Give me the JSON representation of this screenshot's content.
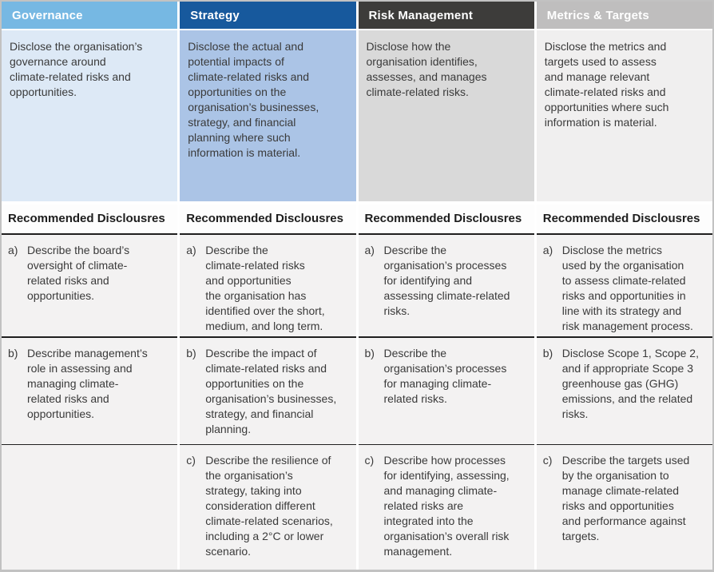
{
  "table": {
    "recommended_row_bg": "#fdfdfd",
    "item_row_bg": "#f3f2f2",
    "rule_color": "#1f1f1f"
  },
  "columns": [
    {
      "header": "Governance",
      "header_bg": "#76b8e3",
      "desc_bg": "#dde9f6",
      "description": "Disclose the organisation’s\ngovernance around\nclimate-related risks and\nopportunities.",
      "recommended": "Recommended Disclousres",
      "items": [
        {
          "label": "a)",
          "text": "Describe the board’s\noversight of climate-\nrelated risks and\nopportunities."
        },
        {
          "label": "b)",
          "text": "Describe management’s\nrole in assessing and\nmanaging climate-\nrelated risks and\nopportunities."
        },
        {
          "label": "",
          "text": ""
        }
      ]
    },
    {
      "header": "Strategy",
      "header_bg": "#17599d",
      "desc_bg": "#abc4e6",
      "description": "Disclose the actual and\npotential impacts of\nclimate-related risks and\nopportunities on the\norganisation’s businesses,\nstrategy, and financial\nplanning where such\ninformation is material.",
      "recommended": "Recommended Disclousres",
      "items": [
        {
          "label": "a)",
          "text": "Describe the\nclimate-related risks\nand opportunities\nthe organisation has\nidentified over the short,\nmedium, and long term."
        },
        {
          "label": "b)",
          "text": "Describe the impact of\nclimate-related risks and\nopportunities on the\norganisation’s businesses,\nstrategy, and financial\nplanning."
        },
        {
          "label": "c)",
          "text": "Describe the resilience of\nthe organisation’s\nstrategy, taking into\nconsideration different\nclimate-related scenarios,\nincluding a 2°C or lower\nscenario."
        }
      ]
    },
    {
      "header": "Risk Management",
      "header_bg": "#3d3c3a",
      "desc_bg": "#d9d9d9",
      "description": "Disclose how the\norganisation identifies,\nassesses, and manages\nclimate-related risks.",
      "recommended": "Recommended Disclousres",
      "items": [
        {
          "label": "a)",
          "text": "Describe the\norganisation’s processes\nfor identifying and\nassessing climate-related\nrisks."
        },
        {
          "label": "b)",
          "text": "Describe the\norganisation’s processes\nfor managing climate-\nrelated risks."
        },
        {
          "label": "c)",
          "text": "Describe how processes\nfor identifying, assessing,\nand managing climate-\nrelated risks are\nintegrated into the\norganisation’s overall risk\nmanagement."
        }
      ]
    },
    {
      "header": "Metrics & Targets",
      "header_bg": "#bfbebe",
      "desc_bg": "#f0efef",
      "description": "Disclose the metrics and\ntargets used to assess\nand manage relevant\nclimate-related risks and\nopportunities where such\ninformation is material.",
      "recommended": "Recommended Disclousres",
      "items": [
        {
          "label": "a)",
          "text": "Disclose the metrics\nused by the organisation\nto assess climate-related\nrisks and opportunities in\nline with its strategy and\nrisk management process."
        },
        {
          "label": "b)",
          "text": "Disclose Scope 1, Scope 2,\nand if appropriate Scope 3\ngreenhouse gas (GHG)\nemissions, and the related\nrisks."
        },
        {
          "label": "c)",
          "text": "Describe the targets used\nby the organisation to\nmanage climate-related\nrisks and opportunities\nand performance against\ntargets."
        }
      ]
    }
  ]
}
